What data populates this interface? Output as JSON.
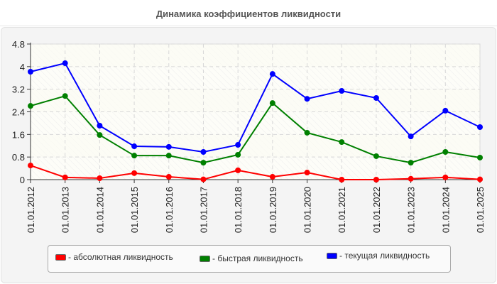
{
  "title": "Динамика коэффициентов ликвидности",
  "legend": [
    {
      "label": "- абсолютная ликвидность",
      "color": "#ff0000"
    },
    {
      "label": "- быстрая ликвидность",
      "color": "#008000"
    },
    {
      "label": "- текущая ликвидность",
      "color": "#0000ff"
    }
  ],
  "chart_data": {
    "type": "line",
    "title": "Динамика коэффициентов ликвидности",
    "xlabel": "",
    "ylabel": "",
    "ylim": [
      0,
      4.8
    ],
    "yticks": [
      "0",
      "0.8",
      "1.6",
      "2.4",
      "3.2",
      "4",
      "4.8"
    ],
    "grid": true,
    "legend_position": "bottom",
    "categories": [
      "01.01.2012",
      "01.01.2013",
      "01.01.2014",
      "01.01.2015",
      "01.01.2016",
      "01.01.2017",
      "01.01.2018",
      "01.01.2019",
      "01.01.2020",
      "01.01.2021",
      "01.01.2022",
      "01.01.2023",
      "01.01.2024",
      "01.01.2025"
    ],
    "series": [
      {
        "name": "абсолютная ликвидность",
        "color": "#ff0000",
        "values": [
          0.5,
          0.08,
          0.05,
          0.23,
          0.1,
          0.01,
          0.33,
          0.1,
          0.25,
          0.0,
          0.0,
          0.03,
          0.08,
          0.01
        ]
      },
      {
        "name": "быстрая ликвидность",
        "color": "#008000",
        "values": [
          2.61,
          2.96,
          1.58,
          0.85,
          0.85,
          0.6,
          0.88,
          2.71,
          1.66,
          1.33,
          0.83,
          0.6,
          0.98,
          0.78
        ]
      },
      {
        "name": "текущая ликвидность",
        "color": "#0000ff",
        "values": [
          3.82,
          4.12,
          1.91,
          1.18,
          1.16,
          0.98,
          1.23,
          3.74,
          2.86,
          3.14,
          2.89,
          1.53,
          2.44,
          1.86
        ]
      }
    ]
  }
}
